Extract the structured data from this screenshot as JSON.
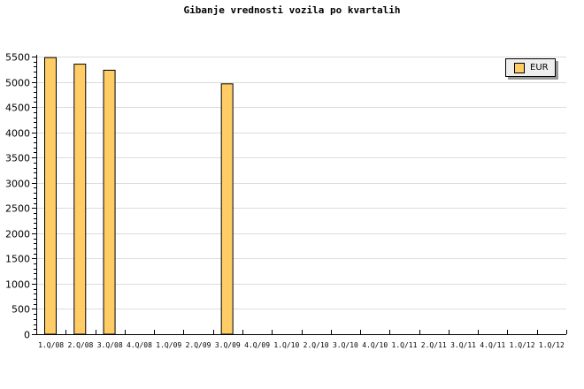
{
  "chart_data": {
    "type": "bar",
    "title": "Gibanje vrednosti vozila po kvartalih",
    "categories": [
      "1.Q/08",
      "2.Q/08",
      "3.Q/08",
      "4.Q/08",
      "1.Q/09",
      "2.Q/09",
      "3.Q/09",
      "4.Q/09",
      "1.Q/10",
      "2.Q/10",
      "3.Q/10",
      "4.Q/10",
      "1.Q/11",
      "2.Q/11",
      "3.Q/11",
      "4.Q/11",
      "1.Q/12",
      "1.Q/12"
    ],
    "series": [
      {
        "name": "EUR",
        "values": [
          5480,
          5350,
          5230,
          null,
          null,
          null,
          4960,
          null,
          null,
          null,
          null,
          null,
          null,
          null,
          null,
          null,
          null,
          null
        ]
      }
    ],
    "ylim": [
      0,
      5500
    ],
    "yticks": [
      0,
      500,
      1000,
      1500,
      2000,
      2500,
      3000,
      3500,
      4000,
      4500,
      5000,
      5500
    ],
    "grid": true,
    "legend": "top-right",
    "colors": {
      "bar": "#ffcc66",
      "grid": "#dddddd"
    }
  }
}
